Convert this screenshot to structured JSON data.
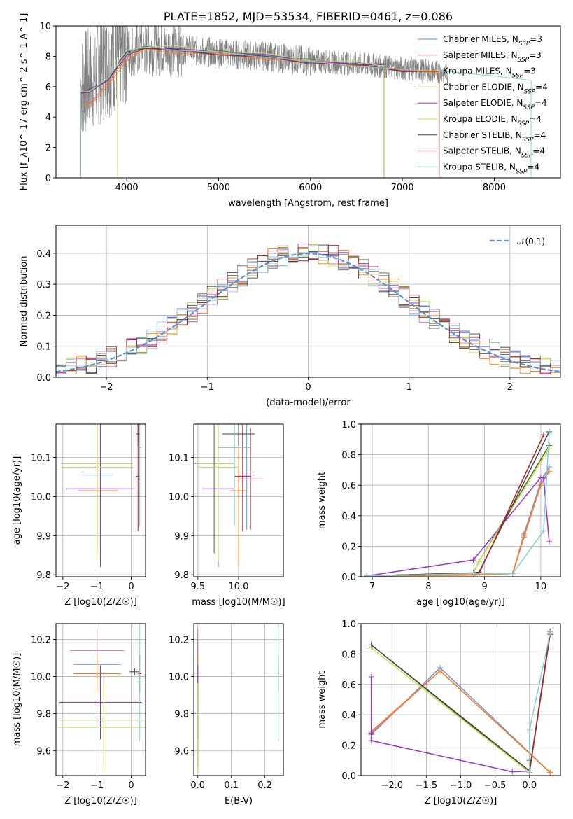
{
  "chart_data": [
    {
      "id": "spectrum",
      "type": "line",
      "title": "PLATE=1852, MJD=53534, FIBERID=0461, z=0.086",
      "xlabel": "wavelength [Angstrom, rest frame]",
      "ylabel": "Flux [f_λ10^-17 erg cm^-2 s^-1 A^-1]",
      "xlim": [
        3230,
        8720
      ],
      "ylim": [
        0,
        10
      ],
      "xticks": [
        4000,
        5000,
        6000,
        7000,
        8000
      ],
      "yticks": [
        0,
        2,
        4,
        6,
        8,
        10
      ],
      "grid": false,
      "legend_placement": "right",
      "series": [
        {
          "name": "Chabrier MILES, N_SSP=3",
          "color": "#6495ed",
          "x": [
            3500,
            3600,
            3800,
            4000,
            4200,
            4500,
            5000,
            5500,
            6000,
            6500,
            7000,
            7400
          ],
          "y": [
            5.6,
            5.7,
            6.5,
            8.3,
            8.6,
            8.5,
            8.2,
            8.0,
            7.7,
            7.5,
            7.2,
            6.9
          ]
        },
        {
          "name": "Salpeter MILES, N_SSP=3",
          "color": "#db7093",
          "x": [
            3500,
            3600,
            3800,
            4000,
            4200,
            4500,
            5000,
            5500,
            6000,
            6500,
            7000,
            7400
          ],
          "y": [
            5.2,
            5.0,
            6.2,
            8.0,
            8.5,
            8.4,
            8.1,
            7.9,
            7.7,
            7.4,
            7.1,
            6.9
          ]
        },
        {
          "name": "Kroupa MILES, N_SSP=3",
          "color": "#ff7f0e",
          "x": [
            3500,
            3600,
            3800,
            4000,
            4200,
            4500,
            5000,
            5500,
            6000,
            6500,
            7000,
            7400
          ],
          "y": [
            4.8,
            4.9,
            6.0,
            7.8,
            8.4,
            8.3,
            8.1,
            7.9,
            7.6,
            7.4,
            7.1,
            6.9
          ]
        },
        {
          "name": "Chabrier ELODIE, N_SSP=4",
          "color": "#556b2f",
          "x": [
            3900,
            4000,
            4200,
            4500,
            5000,
            5500,
            6000,
            6500,
            6800
          ],
          "y": [
            7.6,
            8.2,
            8.6,
            8.5,
            8.3,
            8.1,
            7.7,
            7.5,
            7.4
          ]
        },
        {
          "name": "Salpeter ELODIE, N_SSP=4",
          "color": "#9932cc",
          "x": [
            3900,
            4000,
            4200,
            4500,
            5000,
            5500,
            6000,
            6500,
            6800
          ],
          "y": [
            7.6,
            8.2,
            8.6,
            8.5,
            8.3,
            8.1,
            7.7,
            7.5,
            7.4
          ]
        },
        {
          "name": "Kroupa ELODIE, N_SSP=4",
          "color": "#c8e250",
          "x": [
            3900,
            4000,
            4200,
            4500,
            5000,
            5500,
            6000,
            6500,
            6800
          ],
          "y": [
            7.7,
            8.3,
            8.7,
            8.6,
            8.4,
            8.1,
            7.8,
            7.6,
            7.4
          ]
        },
        {
          "name": "Chabrier STELIB, N_SSP=4",
          "color": "#444444",
          "x": [
            3500,
            3600,
            3800,
            4000,
            4200,
            4500,
            5000,
            5500,
            6000,
            6500,
            7000,
            7400
          ],
          "y": [
            5.6,
            5.8,
            6.5,
            8.2,
            8.6,
            8.4,
            8.2,
            7.9,
            7.6,
            7.4,
            7.1,
            6.9
          ]
        },
        {
          "name": "Salpeter STELIB, N_SSP=4",
          "color": "#b22222",
          "x": [
            3500,
            3600,
            3800,
            4000,
            4200,
            4500,
            5000,
            5500,
            6000,
            6500,
            7000,
            7400
          ],
          "y": [
            5.5,
            5.7,
            6.4,
            8.1,
            8.5,
            8.4,
            8.1,
            7.9,
            7.6,
            7.4,
            7.1,
            6.9
          ]
        },
        {
          "name": "Kroupa STELIB, N_SSP=4",
          "color": "#80d0d8",
          "x": [
            3500,
            3600,
            3800,
            4000,
            4200,
            4500,
            5000,
            5500,
            6000,
            6500,
            7000,
            7500,
            8000,
            8400
          ],
          "y": [
            5.6,
            5.8,
            6.5,
            8.3,
            8.6,
            8.5,
            8.2,
            8.0,
            7.6,
            7.4,
            7.1,
            7.0,
            6.7,
            6.4
          ]
        }
      ],
      "data_series": {
        "name": "",
        "color": "#808080",
        "x": [
          3500,
          3800,
          4000,
          4500,
          5000,
          5500,
          6000,
          6500,
          7000,
          7500
        ],
        "y": [
          6.0,
          7.5,
          8.4,
          8.5,
          8.2,
          8.0,
          7.7,
          7.5,
          7.2,
          6.9
        ]
      }
    },
    {
      "id": "residuals",
      "type": "step",
      "title": "",
      "xlabel": "(data-model)/error",
      "ylabel": "Normed distribution",
      "xlim": [
        -2.5,
        2.5
      ],
      "ylim": [
        0,
        0.49
      ],
      "xticks": [
        -2,
        -1,
        0,
        1,
        2
      ],
      "yticks": [
        0.0,
        0.1,
        0.2,
        0.3,
        0.4
      ],
      "grid": true,
      "legend_placement": "top-right",
      "normal_curve": {
        "name": "𝒩(0,1)",
        "color": "#5b8fd8"
      }
    },
    {
      "id": "age-vs-Z",
      "type": "errorbar",
      "xlabel": "Z [log10(Z/Z☉)]",
      "ylabel": "age  [log10(age/yr)]",
      "xlim": [
        -2.2,
        0.42
      ],
      "ylim": [
        9.795,
        10.185
      ],
      "xticks": [
        -2,
        -1,
        0
      ],
      "yticks": [
        9.8,
        9.9,
        10.0,
        10.1
      ],
      "grid": true,
      "points": [
        {
          "color": "#6495ed",
          "x": -1.0,
          "xerr": 0.45,
          "y": 10.055,
          "yerr": 0.14
        },
        {
          "color": "#db7093",
          "x": -1.0,
          "xerr": 0.55,
          "y": 10.015,
          "yerr": 0.13
        },
        {
          "color": "#ff7f0e",
          "x": -0.9,
          "xerr": 0.5,
          "y": 10.015,
          "yerr": 0.19
        },
        {
          "color": "#556b2f",
          "x": -1.0,
          "xerr": 1.05,
          "y": 10.085,
          "yerr": 0.23
        },
        {
          "color": "#9932cc",
          "x": -0.9,
          "xerr": 1.0,
          "y": 10.02,
          "yerr": 0.2
        },
        {
          "color": "#c8e250",
          "x": -1.0,
          "xerr": 1.05,
          "y": 10.075,
          "yerr": 0.24
        },
        {
          "color": "#444444",
          "x": 0.2,
          "xerr": 0.06,
          "y": 10.16,
          "yerr": 0.03
        },
        {
          "color": "#b22222",
          "x": 0.2,
          "xerr": 0.05,
          "y": 10.052,
          "yerr": 0.14
        },
        {
          "color": "#80d0d8",
          "x": 0.25,
          "xerr": 0.05,
          "y": 10.125,
          "yerr": 0.2
        }
      ]
    },
    {
      "id": "age-vs-mass",
      "type": "errorbar",
      "xlabel": "mass [log10(M/M☉)]",
      "ylabel": "",
      "xlim": [
        9.45,
        10.55
      ],
      "ylim": [
        9.795,
        10.185
      ],
      "xticks": [
        9.5,
        10.0
      ],
      "yticks": [
        9.8,
        9.9,
        10.0,
        10.1
      ],
      "grid": true,
      "points": [
        {
          "color": "#6495ed",
          "x": 10.1,
          "xerr": 0.1,
          "y": 10.055,
          "yerr": 0.14
        },
        {
          "color": "#db7093",
          "x": 10.15,
          "xerr": 0.15,
          "y": 10.045,
          "yerr": 0.13
        },
        {
          "color": "#ff7f0e",
          "x": 10.0,
          "xerr": 0.1,
          "y": 10.015,
          "yerr": 0.19
        },
        {
          "color": "#556b2f",
          "x": 9.7,
          "xerr": 0.25,
          "y": 10.085,
          "yerr": 0.23
        },
        {
          "color": "#9932cc",
          "x": 9.75,
          "xerr": 0.2,
          "y": 10.02,
          "yerr": 0.2
        },
        {
          "color": "#c8e250",
          "x": 9.75,
          "xerr": 0.25,
          "y": 10.075,
          "yerr": 0.24
        },
        {
          "color": "#444444",
          "x": 10.0,
          "xerr": 0.2,
          "y": 10.16,
          "yerr": 0.03
        },
        {
          "color": "#b22222",
          "x": 10.05,
          "xerr": 0.1,
          "y": 10.052,
          "yerr": 0.14
        },
        {
          "color": "#80d0d8",
          "x": 9.95,
          "xerr": 0.2,
          "y": 10.125,
          "yerr": 0.2
        }
      ]
    },
    {
      "id": "weight-vs-age",
      "type": "line",
      "xlabel": "age  [log10(age/yr)]",
      "ylabel": "mass weight",
      "xlim": [
        6.8,
        10.35
      ],
      "ylim": [
        0,
        1.0
      ],
      "xticks": [
        7,
        8,
        9,
        10
      ],
      "yticks": [
        0.0,
        0.2,
        0.4,
        0.6,
        0.8,
        1.0
      ],
      "grid": true,
      "series": [
        {
          "color": "#6495ed",
          "x": [
            6.9,
            8.8,
            9.5,
            9.7,
            10.0,
            10.15
          ],
          "y": [
            0.005,
            0.02,
            0.02,
            0.28,
            0.62,
            0.72
          ]
        },
        {
          "color": "#db7093",
          "x": [
            6.9,
            8.8,
            9.5,
            9.7,
            10.0,
            10.15
          ],
          "y": [
            0.005,
            0.015,
            0.02,
            0.26,
            0.6,
            0.7
          ]
        },
        {
          "color": "#ff7f0e",
          "x": [
            6.9,
            8.8,
            9.5,
            9.7,
            10.0,
            10.15
          ],
          "y": [
            0.005,
            0.01,
            0.02,
            0.27,
            0.6,
            0.69
          ]
        },
        {
          "color": "#556b2f",
          "x": [
            6.9,
            8.8,
            8.9,
            10.15
          ],
          "y": [
            0.005,
            0.025,
            0.1,
            0.86
          ]
        },
        {
          "color": "#9932cc",
          "x": [
            6.9,
            8.8,
            10.0,
            10.05,
            10.15
          ],
          "y": [
            0.005,
            0.11,
            0.65,
            0.65,
            0.23
          ]
        },
        {
          "color": "#c8e250",
          "x": [
            6.9,
            8.8,
            8.9,
            10.15
          ],
          "y": [
            0.005,
            0.02,
            0.1,
            0.84
          ]
        },
        {
          "color": "#444444",
          "x": [
            6.9,
            8.8,
            8.9,
            10.15
          ],
          "y": [
            0.005,
            0.025,
            0.03,
            0.95
          ]
        },
        {
          "color": "#b22222",
          "x": [
            6.9,
            8.8,
            8.9,
            10.05
          ],
          "y": [
            0.005,
            0.02,
            0.02,
            0.93
          ]
        },
        {
          "color": "#80d0d8",
          "x": [
            6.9,
            8.8,
            9.5,
            10.05,
            10.15
          ],
          "y": [
            0.005,
            0.02,
            0.02,
            0.3,
            0.94
          ]
        }
      ]
    },
    {
      "id": "mass-vs-Z",
      "type": "errorbar",
      "xlabel": "Z [log10(Z/Z☉)]",
      "ylabel": "mass [log10(M/M☉)]",
      "xlim": [
        -2.2,
        0.42
      ],
      "ylim": [
        9.465,
        10.285
      ],
      "xticks": [
        -2,
        -1,
        0
      ],
      "yticks": [
        9.6,
        9.8,
        10.0,
        10.2
      ],
      "grid": true,
      "points": [
        {
          "color": "#6495ed",
          "x": -1.0,
          "xerr": 0.7,
          "y": 10.065,
          "yerr": 0.13
        },
        {
          "color": "#db7093",
          "x": -1.0,
          "xerr": 0.8,
          "y": 10.14,
          "yerr": 0.12
        },
        {
          "color": "#ff7f0e",
          "x": -1.0,
          "xerr": 0.7,
          "y": 10.015,
          "yerr": 0.1
        },
        {
          "color": "#556b2f",
          "x": -0.8,
          "xerr": 1.3,
          "y": 9.765,
          "yerr": 0.25
        },
        {
          "color": "#9932cc",
          "x": -0.9,
          "xerr": 1.2,
          "y": 9.86,
          "yerr": 0.2
        },
        {
          "color": "#c8e250",
          "x": -0.8,
          "xerr": 1.35,
          "y": 9.725,
          "yerr": 0.24
        },
        {
          "color": "#444444",
          "x": 0.1,
          "xerr": 0.15,
          "y": 10.025,
          "yerr": 0.02
        },
        {
          "color": "#b22222",
          "x": 0.25,
          "xerr": 0.05,
          "y": 10.015,
          "yerr": 0.1
        },
        {
          "color": "#80d0d8",
          "x": 0.25,
          "xerr": 0.1,
          "y": 9.97,
          "yerr": 0.32
        }
      ]
    },
    {
      "id": "mass-vs-ebv",
      "type": "errorbar",
      "xlabel": "E(B-V)",
      "ylabel": "",
      "xlim": [
        -0.012,
        0.255
      ],
      "ylim": [
        9.465,
        10.285
      ],
      "xticks": [
        0.0,
        0.1,
        0.2
      ],
      "yticks": [
        9.6,
        9.8,
        10.0,
        10.2
      ],
      "grid": true,
      "points": [
        {
          "color": "#6495ed",
          "x": 0.0,
          "xerr": 0.0,
          "y": 10.065,
          "yerr": 0.13
        },
        {
          "color": "#db7093",
          "x": 0.0,
          "xerr": 0.0,
          "y": 10.14,
          "yerr": 0.12
        },
        {
          "color": "#ff7f0e",
          "x": 0.0,
          "xerr": 0.0,
          "y": 10.015,
          "yerr": 0.1
        },
        {
          "color": "#556b2f",
          "x": 0.0,
          "xerr": 0.0,
          "y": 9.765,
          "yerr": 0.25
        },
        {
          "color": "#9932cc",
          "x": 0.0,
          "xerr": 0.0,
          "y": 9.86,
          "yerr": 0.2
        },
        {
          "color": "#c8e250",
          "x": 0.0,
          "xerr": 0.0,
          "y": 9.725,
          "yerr": 0.24
        },
        {
          "color": "#444444",
          "x": 0.24,
          "xerr": 0.0,
          "y": 10.025,
          "yerr": 0.02
        },
        {
          "color": "#b22222",
          "x": 0.24,
          "xerr": 0.0,
          "y": 10.015,
          "yerr": 0.1
        },
        {
          "color": "#80d0d8",
          "x": 0.24,
          "xerr": 0.0,
          "y": 9.97,
          "yerr": 0.32
        }
      ]
    },
    {
      "id": "weight-vs-Z",
      "type": "line",
      "xlabel": "Z [log10(Z/Z☉)]",
      "ylabel": "mass weight",
      "xlim": [
        -2.45,
        0.45
      ],
      "ylim": [
        0,
        1.0
      ],
      "xticks": [
        -2.0,
        -1.5,
        -1.0,
        -0.5,
        0.0
      ],
      "yticks": [
        0.0,
        0.2,
        0.4,
        0.6,
        0.8,
        1.0
      ],
      "grid": true,
      "series": [
        {
          "color": "#6495ed",
          "x": [
            -2.3,
            -1.3,
            0.3
          ],
          "y": [
            0.27,
            0.71,
            0.02
          ]
        },
        {
          "color": "#db7093",
          "x": [
            -2.3,
            -1.3,
            0.3
          ],
          "y": [
            0.28,
            0.69,
            0.02
          ]
        },
        {
          "color": "#ff7f0e",
          "x": [
            -2.3,
            -1.3,
            0.3
          ],
          "y": [
            0.29,
            0.69,
            0.02
          ]
        },
        {
          "color": "#556b2f",
          "x": [
            -2.3,
            0.0,
            0.0
          ],
          "y": [
            0.86,
            0.02,
            0.1
          ]
        },
        {
          "color": "#9932cc",
          "x": [
            -2.3,
            -2.3,
            -2.3,
            -0.25,
            0.0
          ],
          "y": [
            0.65,
            0.28,
            0.23,
            0.025,
            0.03
          ]
        },
        {
          "color": "#c8e250",
          "x": [
            -2.3,
            0.0,
            0.0
          ],
          "y": [
            0.84,
            0.02,
            0.09
          ]
        },
        {
          "color": "#444444",
          "x": [
            -2.3,
            0.0,
            0.3
          ],
          "y": [
            0.86,
            0.03,
            0.95
          ]
        },
        {
          "color": "#b22222",
          "x": [
            0.0,
            0.3
          ],
          "y": [
            0.02,
            0.93
          ]
        },
        {
          "color": "#80d0d8",
          "x": [
            0.0,
            0.0,
            0.3
          ],
          "y": [
            0.02,
            0.3,
            0.94
          ]
        }
      ]
    }
  ]
}
